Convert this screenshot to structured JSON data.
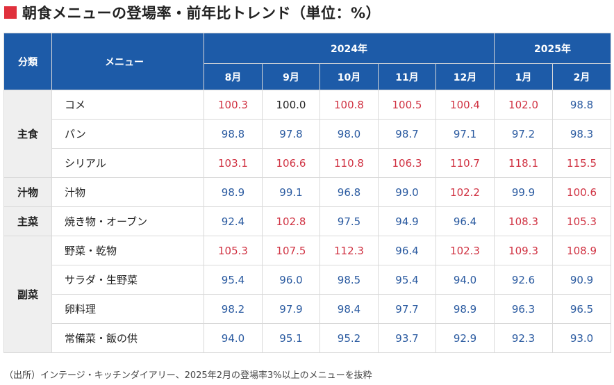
{
  "title": "朝食メニューの登場率・前年比トレンド（単位：%）",
  "header": {
    "category_label": "分類",
    "menu_label": "メニュー",
    "years": [
      {
        "label": "2024年",
        "span": 5
      },
      {
        "label": "2025年",
        "span": 2
      }
    ],
    "months": [
      "8月",
      "9月",
      "10月",
      "11月",
      "12月",
      "1月",
      "2月"
    ]
  },
  "colors": {
    "header_bg": "#1d5ba8",
    "above_100": "#d03242",
    "below_100": "#2a5aa0",
    "title_marker": "#e0303c"
  },
  "groups": [
    {
      "category": "主食",
      "rows": [
        {
          "menu": "コメ",
          "values": [
            "100.3",
            "100.0",
            "100.8",
            "100.5",
            "100.4",
            "102.0",
            "98.8"
          ]
        },
        {
          "menu": "パン",
          "values": [
            "98.8",
            "97.8",
            "98.0",
            "98.7",
            "97.1",
            "97.2",
            "98.3"
          ]
        },
        {
          "menu": "シリアル",
          "values": [
            "103.1",
            "106.6",
            "110.8",
            "106.3",
            "110.7",
            "118.1",
            "115.5"
          ]
        }
      ]
    },
    {
      "category": "汁物",
      "rows": [
        {
          "menu": "汁物",
          "values": [
            "98.9",
            "99.1",
            "96.8",
            "99.0",
            "102.2",
            "99.9",
            "100.6"
          ]
        }
      ]
    },
    {
      "category": "主菜",
      "rows": [
        {
          "menu": "焼き物・オーブン",
          "values": [
            "92.4",
            "102.8",
            "97.5",
            "94.9",
            "96.4",
            "108.3",
            "105.3"
          ]
        }
      ]
    },
    {
      "category": "副菜",
      "rows": [
        {
          "menu": "野菜・乾物",
          "values": [
            "105.3",
            "107.5",
            "112.3",
            "96.4",
            "102.3",
            "109.3",
            "108.9"
          ]
        },
        {
          "menu": "サラダ・生野菜",
          "values": [
            "95.4",
            "96.0",
            "98.5",
            "95.4",
            "94.0",
            "92.6",
            "90.9"
          ]
        },
        {
          "menu": "卵料理",
          "values": [
            "98.2",
            "97.9",
            "98.4",
            "97.7",
            "98.9",
            "96.3",
            "96.5"
          ]
        },
        {
          "menu": "常備菜・飯の供",
          "values": [
            "94.0",
            "95.1",
            "95.2",
            "93.7",
            "92.9",
            "92.3",
            "93.0"
          ]
        }
      ]
    }
  ],
  "source": "（出所）インテージ・キッチンダイアリー、2025年2月の登場率3%以上のメニューを抜粋"
}
